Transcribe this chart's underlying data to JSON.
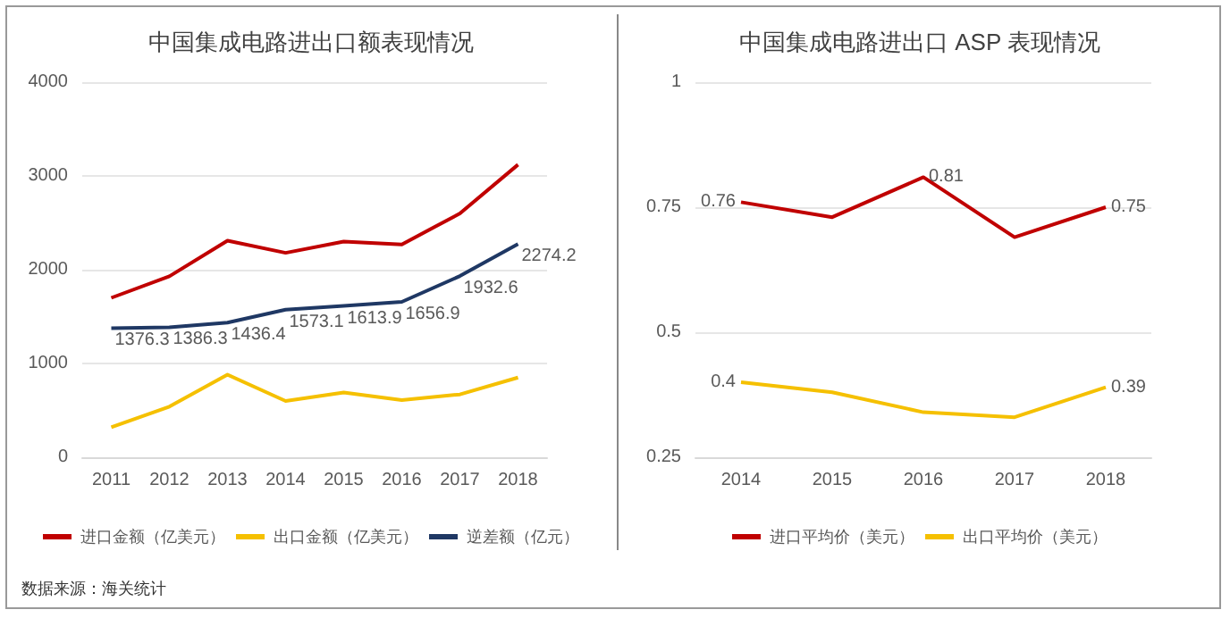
{
  "chart_data": [
    {
      "type": "line",
      "title": "中国集成电路进出口额表现情况",
      "categories": [
        "2011",
        "2012",
        "2013",
        "2014",
        "2015",
        "2016",
        "2017",
        "2018"
      ],
      "ylim": [
        0,
        4000
      ],
      "yticks": [
        0,
        1000,
        2000,
        3000,
        4000
      ],
      "grid": "y",
      "legend": "bottom",
      "marker": "none",
      "line_style": "solid",
      "annotations": [
        "数据来源：海关统计"
      ],
      "series": [
        {
          "name": "进口金额（亿美元）",
          "color": "#c00000",
          "values": [
            1700,
            1930,
            2310,
            2180,
            2300,
            2270,
            2600,
            3120
          ]
        },
        {
          "name": "出口金额（亿美元）",
          "color": "#f5c000",
          "values": [
            320,
            540,
            880,
            600,
            690,
            610,
            670,
            850
          ]
        },
        {
          "name": "逆差额（亿元）",
          "color": "#1f3864",
          "values": [
            1376.3,
            1386.3,
            1436.4,
            1573.1,
            1613.9,
            1656.9,
            1932.6,
            2274.2
          ],
          "value_labels": [
            "1376.3",
            "1386.3",
            "1436.4",
            "1573.1",
            "1613.9",
            "1656.9",
            "1932.6",
            "2274.2"
          ]
        }
      ]
    },
    {
      "type": "line",
      "title": "中国集成电路进出口 ASP 表现情况",
      "categories": [
        "2014",
        "2015",
        "2016",
        "2017",
        "2018"
      ],
      "ylim": [
        0.25,
        1
      ],
      "yticks": [
        0.25,
        0.5,
        0.75,
        1
      ],
      "grid": "y",
      "legend": "bottom",
      "marker": "none",
      "line_style": "solid",
      "series": [
        {
          "name": "进口平均价（美元）",
          "color": "#c00000",
          "values": [
            0.76,
            0.73,
            0.81,
            0.69,
            0.75
          ],
          "value_labels": [
            "0.76",
            null,
            "0.81",
            null,
            "0.75"
          ]
        },
        {
          "name": "出口平均价（美元）",
          "color": "#f5c000",
          "values": [
            0.4,
            0.38,
            0.34,
            0.33,
            0.39
          ],
          "value_labels": [
            "0.4",
            null,
            null,
            null,
            "0.39"
          ]
        }
      ]
    }
  ]
}
